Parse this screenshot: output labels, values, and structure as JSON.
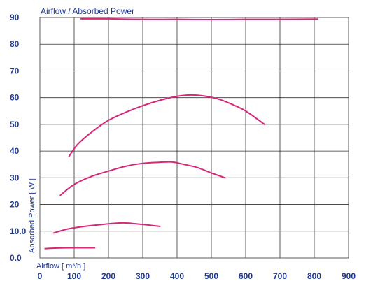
{
  "chart_data": {
    "type": "line",
    "title": "Airflow / Absorbed Power",
    "xlabel": "Airflow [ m³/h ]",
    "ylabel": "Absorbed Power [ W ]",
    "xlim": [
      0,
      900
    ],
    "ylim": [
      0,
      90
    ],
    "x_ticks": [
      "100",
      "200",
      "300",
      "400",
      "500",
      "600",
      "700",
      "800",
      "900"
    ],
    "x_tick_values": [
      100,
      200,
      300,
      400,
      500,
      600,
      700,
      800,
      900
    ],
    "y_ticks": [
      "0.0",
      "10.0",
      "20",
      "30",
      "40",
      "50",
      "60",
      "70",
      "80",
      "90"
    ],
    "y_tick_values": [
      0,
      10,
      20,
      30,
      40,
      50,
      60,
      70,
      80,
      90
    ],
    "x_tick_origin_label": "0",
    "grid": true,
    "line_color": "#d6287a",
    "series": [
      {
        "x": [
          120,
          200,
          300,
          400,
          500,
          600,
          700,
          810
        ],
        "y": [
          89.5,
          89.5,
          89.3,
          89.3,
          89.2,
          89.3,
          89.3,
          89.4
        ]
      },
      {
        "x": [
          85,
          110,
          150,
          200,
          250,
          300,
          350,
          400,
          440,
          480,
          520,
          560,
          600,
          655
        ],
        "y": [
          38,
          42.5,
          47,
          51.5,
          54.5,
          57,
          59,
          60.5,
          61,
          60.6,
          59.5,
          57.5,
          55,
          50
        ]
      },
      {
        "x": [
          60,
          100,
          150,
          200,
          250,
          300,
          350,
          385,
          420,
          460,
          500,
          540
        ],
        "y": [
          23.5,
          27.5,
          30.5,
          32.5,
          34.3,
          35.4,
          35.8,
          35.9,
          35,
          33.8,
          31.8,
          30
        ]
      },
      {
        "x": [
          40,
          80,
          130,
          180,
          220,
          245,
          270,
          310,
          350
        ],
        "y": [
          9.3,
          10.8,
          11.8,
          12.5,
          13,
          13.1,
          12.9,
          12.4,
          11.8
        ]
      },
      {
        "x": [
          15,
          50,
          100,
          160
        ],
        "y": [
          3.5,
          3.7,
          3.8,
          3.8
        ]
      }
    ]
  }
}
